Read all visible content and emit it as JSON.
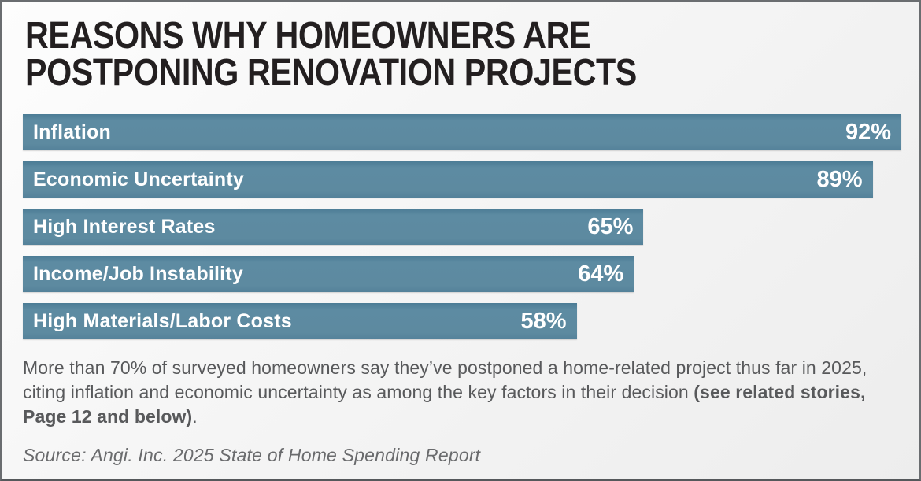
{
  "title": {
    "line1": "REASONS WHY HOMEOWNERS ARE",
    "line2": "POSTPONING RENOVATION PROJECTS"
  },
  "chart_data": {
    "type": "bar",
    "orientation": "horizontal",
    "title": "Reasons why homeowners are postponing renovation projects",
    "categories": [
      "Inflation",
      "Economic Uncertainty",
      "High Interest Rates",
      "Income/Job Instability",
      "High Materials/Labor Costs"
    ],
    "values": [
      92,
      89,
      65,
      64,
      58
    ],
    "value_labels": [
      "92%",
      "89%",
      "65%",
      "64%",
      "58%"
    ],
    "value_suffix": "%",
    "xlim": [
      0,
      92
    ],
    "grid": false,
    "legend": false,
    "bar_color": "#5d8aa0",
    "bar_text_color": "#ffffff"
  },
  "note": {
    "before": "More than 70% of surveyed homeowners say they’ve postponed a home-related project thus far in 2025, citing inflation and economic uncertainty as among the key factors in their decision ",
    "bold": "(see related stories, Page 12 and below)",
    "after": "."
  },
  "source": "Source: Angi. Inc. 2025 State of Home Spending Report",
  "colors": {
    "card_background": "#f4f4f4",
    "card_border": "#6a6d70",
    "title_text": "#231f20",
    "bar": "#5d8aa0",
    "bar_text": "#ffffff",
    "note_text": "#58595b",
    "source_text": "#6a6b6d"
  }
}
